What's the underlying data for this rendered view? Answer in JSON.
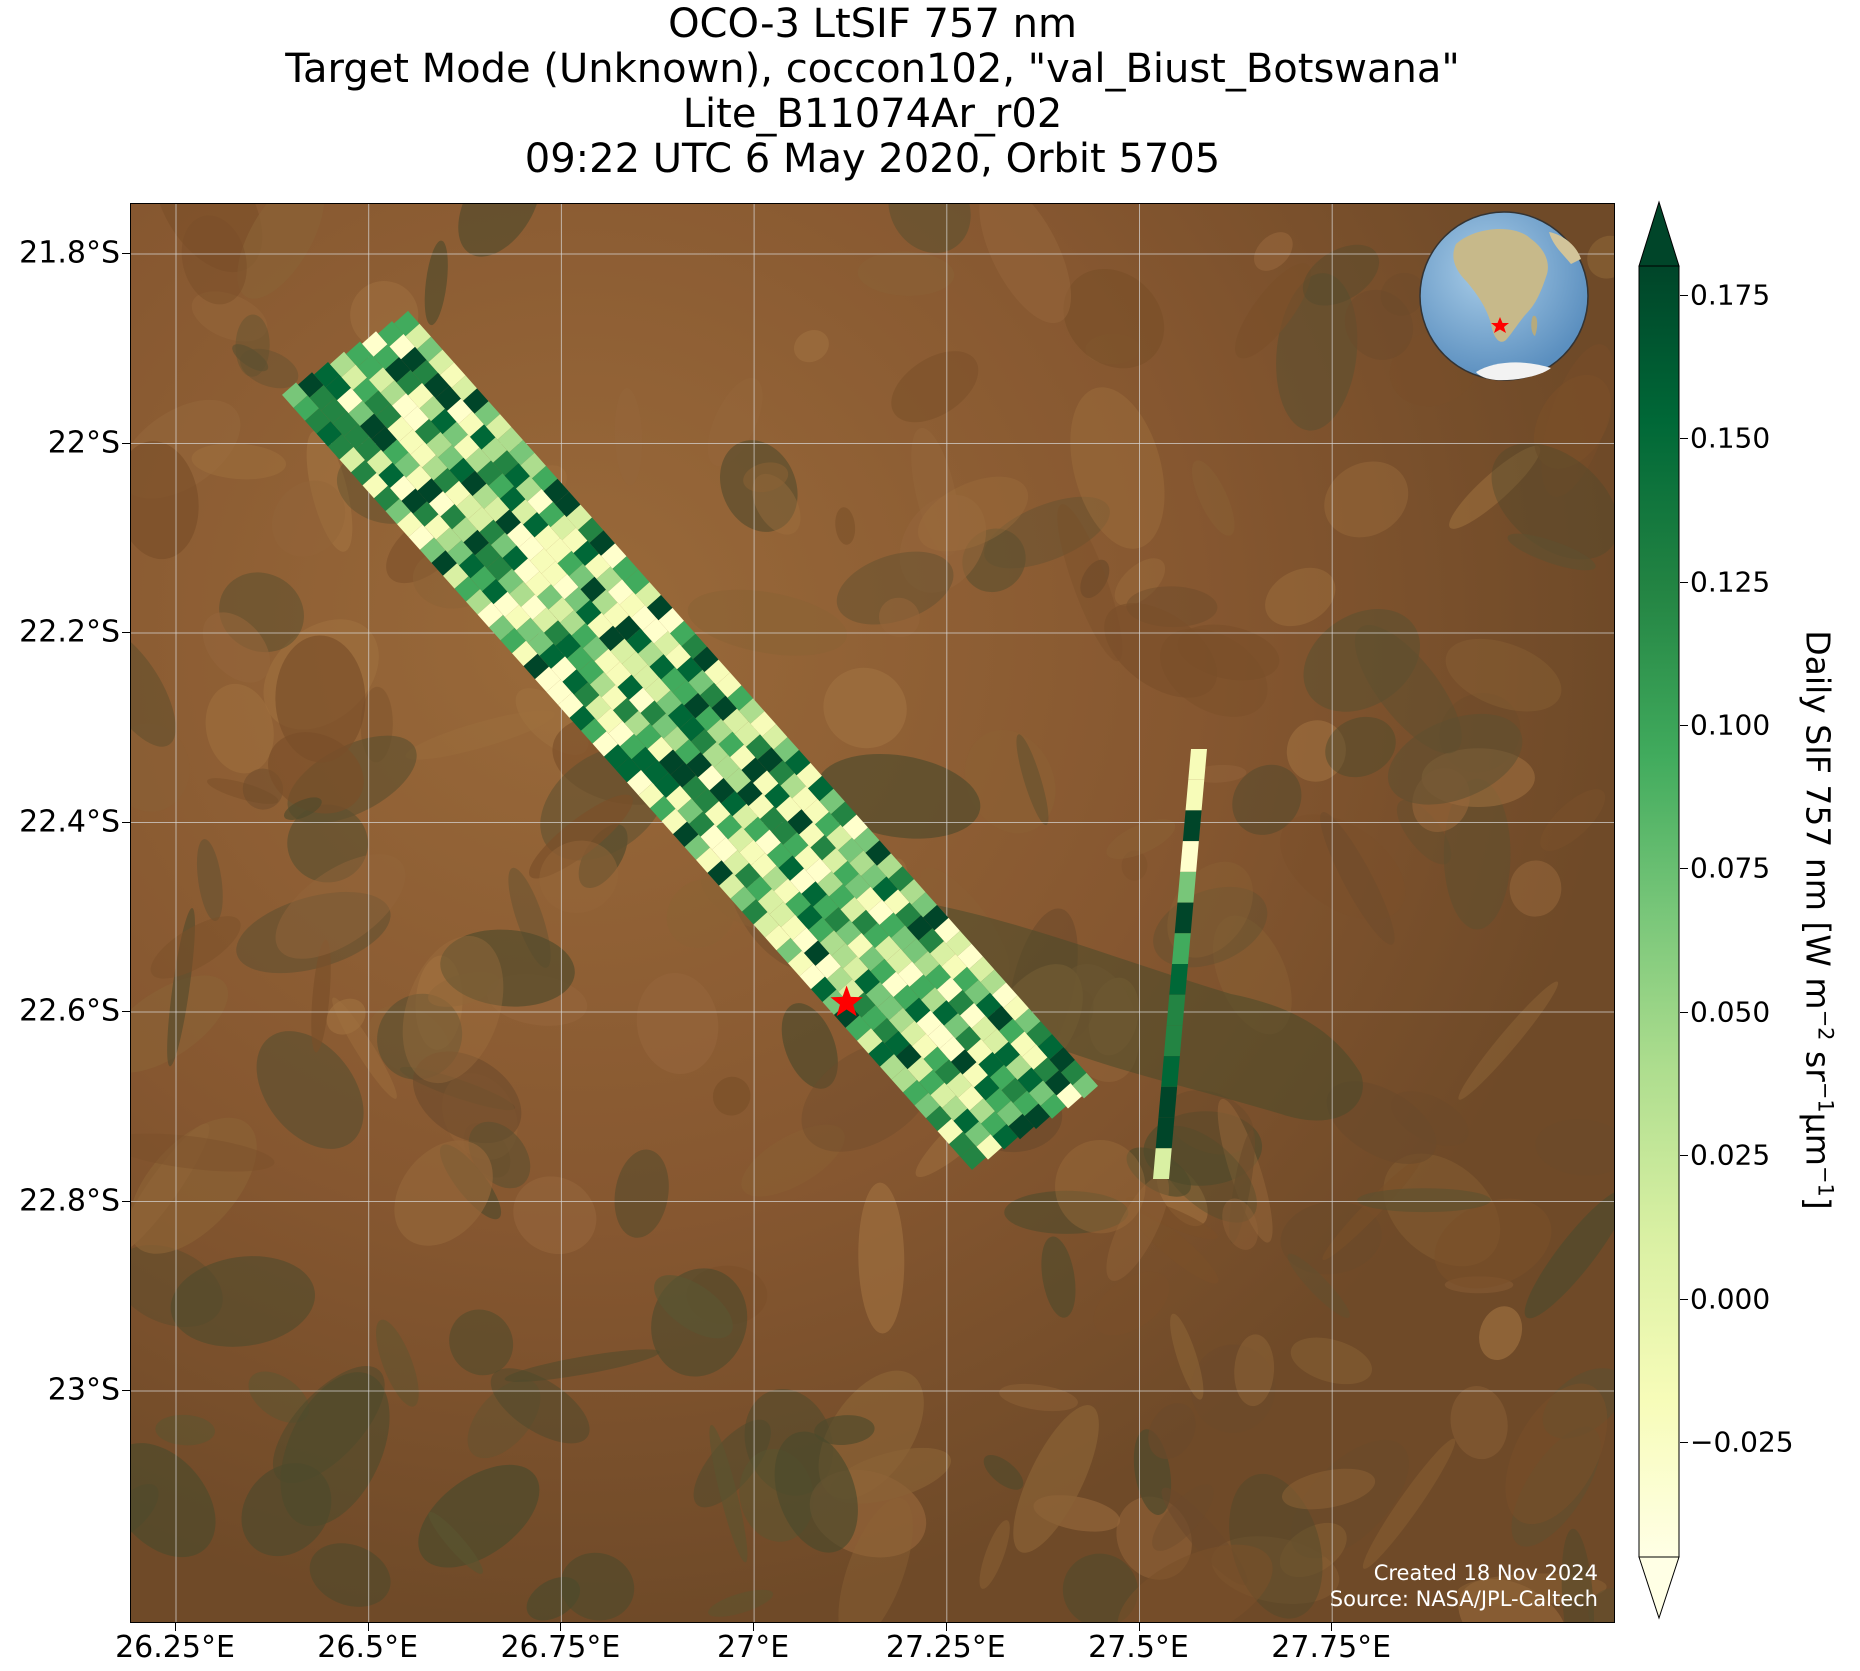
{
  "title": {
    "line1": "OCO-3 LtSIF 757 nm",
    "line2": "Target Mode (Unknown), coccon102, \"val_Biust_Botswana\"",
    "line3": "Lite_B11074Ar_r02",
    "line4": "09:22 UTC 6 May 2020, Orbit 5705"
  },
  "map": {
    "lat_ticks": [
      "21.8°S",
      "22°S",
      "22.2°S",
      "22.4°S",
      "22.6°S",
      "22.8°S",
      "23°S"
    ],
    "lon_ticks": [
      "26.25°E",
      "26.5°E",
      "26.75°E",
      "27°E",
      "27.25°E",
      "27.5°E",
      "27.75°E"
    ],
    "target_marker": "red-star",
    "target_location": {
      "lat": -22.59,
      "lon": 27.12
    },
    "colors": {
      "background_terrain": "#8a5a2e",
      "marker": "#ff0000"
    }
  },
  "credits": {
    "created": "Created 18 Nov 2024",
    "source": "Source: NASA/JPL-Caltech"
  },
  "colorbar": {
    "ticks": [
      "0.175",
      "0.150",
      "0.125",
      "0.100",
      "0.075",
      "0.050",
      "0.025",
      "0.000",
      "−0.025"
    ],
    "label_main": "Daily SIF 757 nm [W m",
    "label_sup1": "−2",
    "label_mid": " sr",
    "label_sup2": "−1",
    "label_mid2": "μm",
    "label_sup3": "−1",
    "label_end": "]",
    "colormap": "YlGn"
  }
}
